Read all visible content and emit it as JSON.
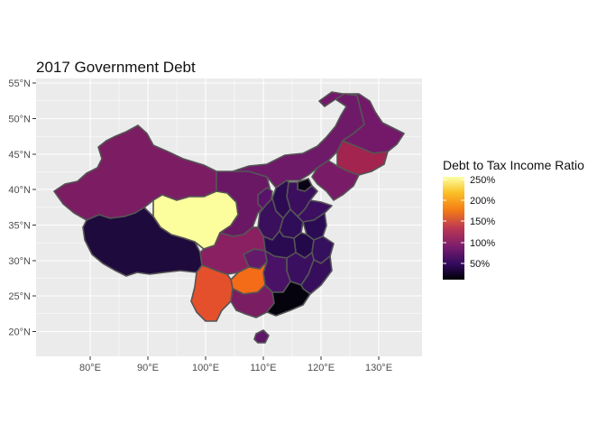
{
  "title": "2017 Government Debt",
  "axes": {
    "y_ticks": [
      "55°N",
      "50°N",
      "45°N",
      "40°N",
      "35°N",
      "30°N",
      "25°N",
      "20°N"
    ],
    "x_ticks": [
      "80°E",
      "90°E",
      "100°E",
      "110°E",
      "120°E",
      "130°E"
    ]
  },
  "legend": {
    "title": "Debt to Tax Income Ratio",
    "labels": [
      "250%",
      "200%",
      "150%",
      "100%",
      "50%"
    ],
    "colors": [
      "#fcffa4",
      "#f98e09",
      "#bc3754",
      "#57106e",
      "#000004"
    ]
  },
  "panel_color": "#ebebeb",
  "regions": [
    {
      "name": "Xinjiang",
      "color": "#7c1d63"
    },
    {
      "name": "Tibet",
      "color": "#1e0a3c"
    },
    {
      "name": "Qinghai",
      "color": "#fcfd9c"
    },
    {
      "name": "Inner Mongolia",
      "color": "#6e1a69"
    },
    {
      "name": "Heilongjiang",
      "color": "#74186a"
    },
    {
      "name": "Jilin",
      "color": "#a3244e"
    },
    {
      "name": "Liaoning",
      "color": "#7a1b67"
    },
    {
      "name": "Gansu",
      "color": "#6a1764"
    },
    {
      "name": "Ningxia",
      "color": "#5a136a"
    },
    {
      "name": "Sichuan",
      "color": "#8a2062"
    },
    {
      "name": "Chongqing",
      "color": "#641a6a"
    },
    {
      "name": "Shaanxi",
      "color": "#3a0f5c"
    },
    {
      "name": "Shanxi",
      "color": "#2c0b52"
    },
    {
      "name": "Hebei",
      "color": "#3b0f5e"
    },
    {
      "name": "Beijing",
      "color": "#0a0516"
    },
    {
      "name": "Henan",
      "color": "#300d58"
    },
    {
      "name": "Shandong",
      "color": "#3c0f60"
    },
    {
      "name": "Hubei",
      "color": "#2a0b52"
    },
    {
      "name": "Anhui",
      "color": "#23094a"
    },
    {
      "name": "Jiangsu",
      "color": "#2b0b54"
    },
    {
      "name": "Zhejiang",
      "color": "#35105e"
    },
    {
      "name": "Jiangxi",
      "color": "#3b0f60"
    },
    {
      "name": "Fujian",
      "color": "#360e5c"
    },
    {
      "name": "Hunan",
      "color": "#4a1266"
    },
    {
      "name": "Yunnan",
      "color": "#e4502b"
    },
    {
      "name": "Guizhou",
      "color": "#f46b18"
    },
    {
      "name": "Guangxi",
      "color": "#7a1d63"
    },
    {
      "name": "Guangdong",
      "color": "#05040e"
    },
    {
      "name": "Hainan",
      "color": "#5f1669"
    }
  ]
}
